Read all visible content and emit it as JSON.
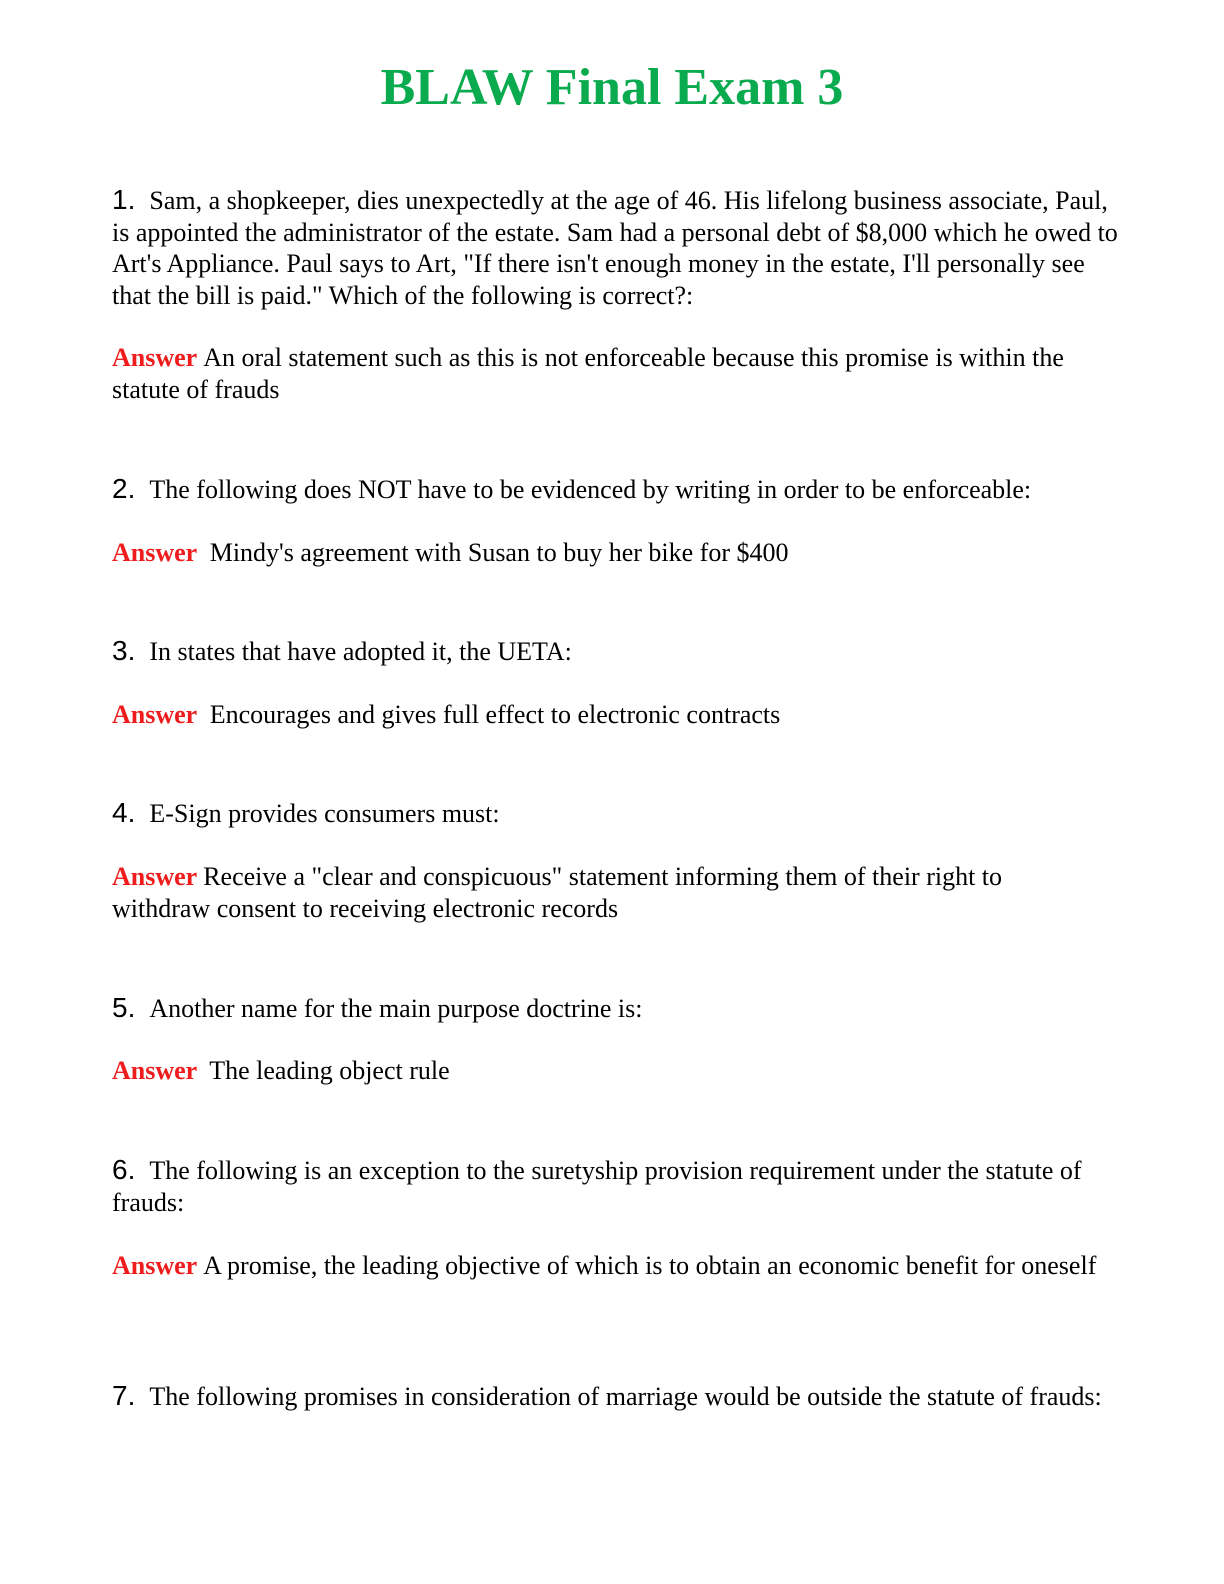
{
  "title": "BLAW Final Exam 3",
  "answer_label": "Answer",
  "colors": {
    "title": "#0aaa4f",
    "answer_label": "#ee1c1c"
  },
  "questions": [
    {
      "number": "1.",
      "text": "Sam, a shopkeeper, dies unexpectedly at the age of 46. His lifelong business associate, Paul, is appointed the administrator of the estate. Sam had a personal debt of $8,000 which he owed to Art's Appliance. Paul says to Art, \"If there isn't enough money in the estate, I'll personally see that the bill is paid.\" Which of the following is correct?:",
      "answer": "An oral statement such as this is not enforceable because this promise is within the statute of frauds"
    },
    {
      "number": "2.",
      "text": "The following does NOT have to be evidenced by writing in order to be enforceable:",
      "answer": "Mindy's agreement with Susan to buy her bike for $400"
    },
    {
      "number": "3.",
      "text": "In states that have adopted it, the UETA:",
      "answer": "Encourages and gives full effect to electronic contracts"
    },
    {
      "number": "4.",
      "text": "E-Sign provides consumers must:",
      "answer": "Receive a \"clear and conspicuous\" statement informing them of their right to withdraw consent to receiving electronic records"
    },
    {
      "number": "5.",
      "text": "Another name for the main purpose doctrine is:",
      "answer": "The leading object rule"
    },
    {
      "number": "6.",
      "text": "The following is an exception to the suretyship provision requirement under the statute of frauds:",
      "answer": "A promise, the leading objective of which is to obtain an economic benefit for oneself"
    },
    {
      "number": "7.",
      "text": "The following promises in consideration of marriage would be outside the statute of frauds:"
    }
  ]
}
